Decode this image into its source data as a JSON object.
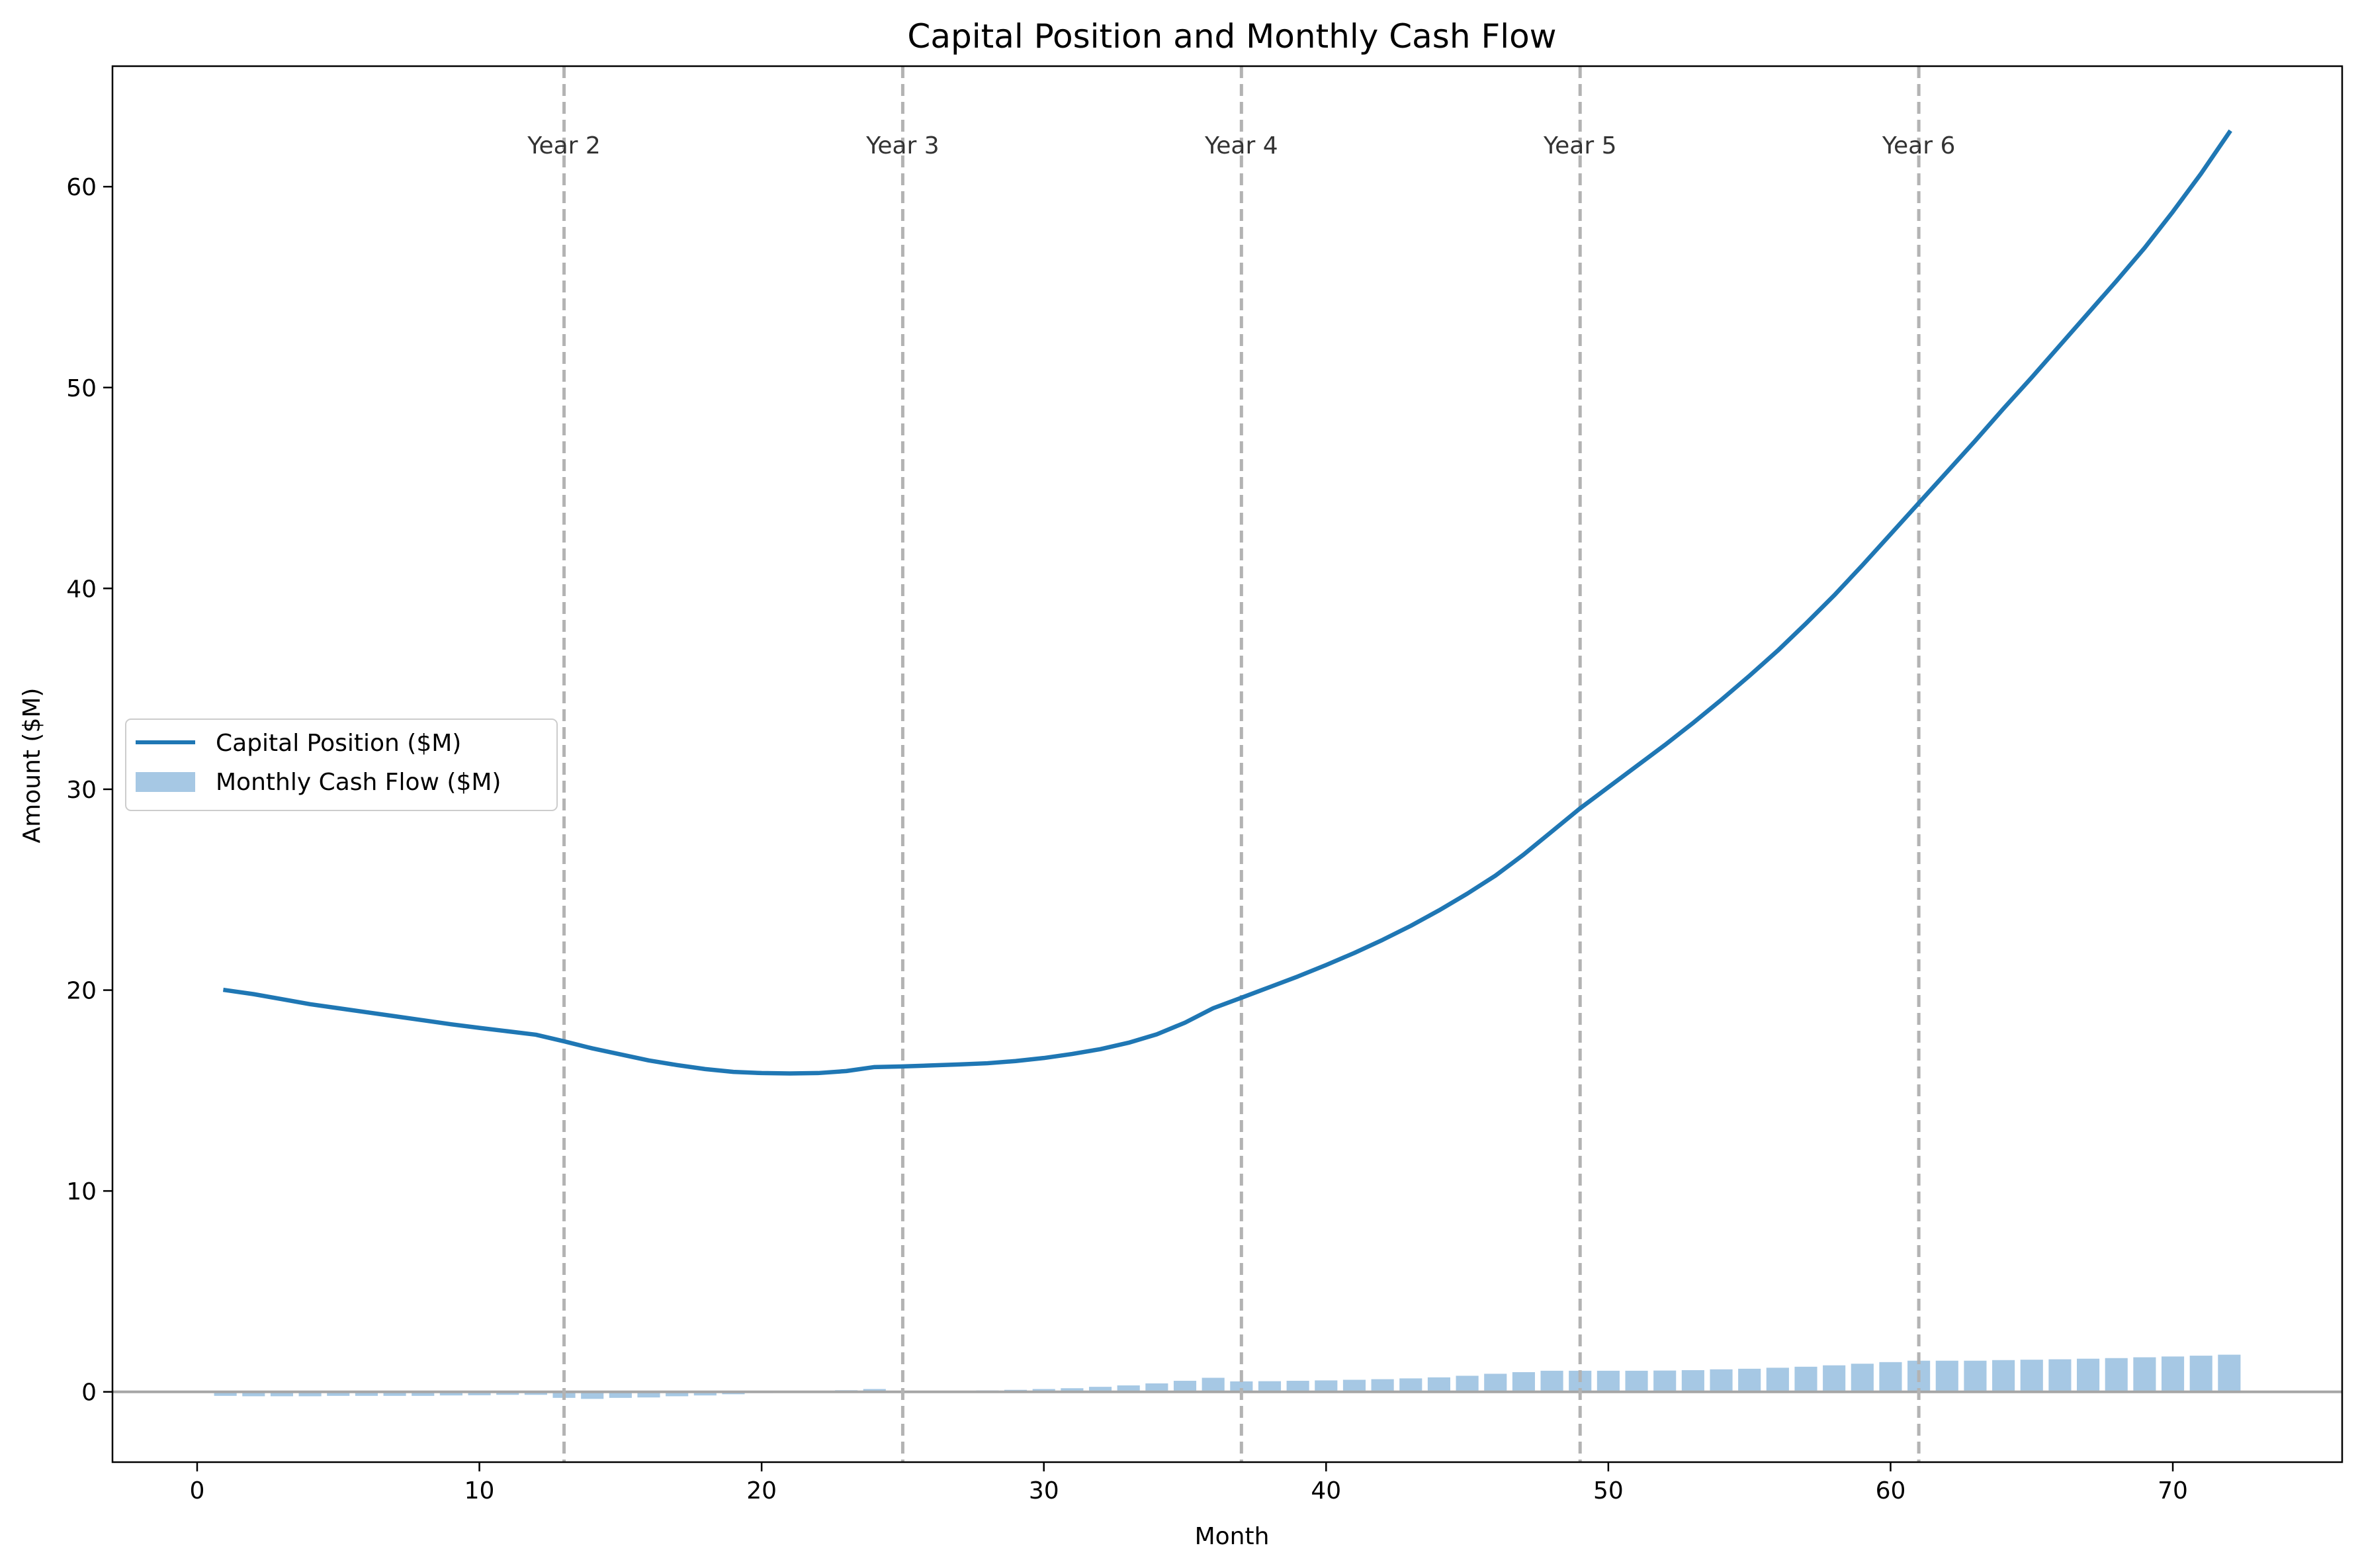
{
  "chart_data": {
    "type": "line",
    "title": "Capital Position and Monthly Cash Flow",
    "xlabel": "Month",
    "ylabel": "Amount ($M)",
    "xlim": [
      -3,
      76
    ],
    "ylim": [
      -3.5,
      66
    ],
    "xticks": [
      0,
      10,
      20,
      30,
      40,
      50,
      60,
      70
    ],
    "yticks": [
      0,
      10,
      20,
      30,
      40,
      50,
      60
    ],
    "grid": false,
    "legend": {
      "position": "center-left"
    },
    "colors": {
      "line": "#1f77b4",
      "bar": "#a6c8e4",
      "vline": "#b3b3b3",
      "zero": "#a6a6a6"
    },
    "annotations": [
      {
        "label": "Year 2",
        "x": 13
      },
      {
        "label": "Year 3",
        "x": 25
      },
      {
        "label": "Year 4",
        "x": 37
      },
      {
        "label": "Year 5",
        "x": 49
      },
      {
        "label": "Year 6",
        "x": 61
      }
    ],
    "series": [
      {
        "name": "Capital Position ($M)",
        "type": "line",
        "x": [
          1,
          2,
          3,
          4,
          5,
          6,
          7,
          8,
          9,
          10,
          11,
          12,
          13,
          14,
          15,
          16,
          17,
          18,
          19,
          20,
          21,
          22,
          23,
          24,
          25,
          26,
          27,
          28,
          29,
          30,
          31,
          32,
          33,
          34,
          35,
          36,
          37,
          38,
          39,
          40,
          41,
          42,
          43,
          44,
          45,
          46,
          47,
          48,
          49,
          50,
          51,
          52,
          53,
          54,
          55,
          56,
          57,
          58,
          59,
          60,
          61,
          62,
          63,
          64,
          65,
          66,
          67,
          68,
          69,
          70,
          71,
          72
        ],
        "values": [
          20.0,
          19.8,
          19.55,
          19.3,
          19.1,
          18.9,
          18.7,
          18.5,
          18.3,
          18.12,
          17.95,
          17.78,
          17.45,
          17.1,
          16.8,
          16.5,
          16.27,
          16.07,
          15.93,
          15.87,
          15.85,
          15.87,
          15.97,
          16.17,
          16.2,
          16.25,
          16.3,
          16.36,
          16.47,
          16.62,
          16.82,
          17.06,
          17.38,
          17.8,
          18.38,
          19.1,
          19.62,
          20.15,
          20.68,
          21.25,
          21.85,
          22.5,
          23.2,
          23.97,
          24.8,
          25.7,
          26.75,
          27.9,
          29.05,
          30.1,
          31.15,
          32.2,
          33.3,
          34.45,
          35.65,
          36.9,
          38.25,
          39.65,
          41.15,
          42.7,
          44.25,
          45.8,
          47.35,
          48.95,
          50.5,
          52.1,
          53.7,
          55.3,
          56.95,
          58.75,
          60.65,
          62.7
        ]
      },
      {
        "name": "Monthly Cash Flow ($M)",
        "type": "bar",
        "x": [
          1,
          2,
          3,
          4,
          5,
          6,
          7,
          8,
          9,
          10,
          11,
          12,
          13,
          14,
          15,
          16,
          17,
          18,
          19,
          20,
          21,
          22,
          23,
          24,
          25,
          26,
          27,
          28,
          29,
          30,
          31,
          32,
          33,
          34,
          35,
          36,
          37,
          38,
          39,
          40,
          41,
          42,
          43,
          44,
          45,
          46,
          47,
          48,
          49,
          50,
          51,
          52,
          53,
          54,
          55,
          56,
          57,
          58,
          59,
          60,
          61,
          62,
          63,
          64,
          65,
          66,
          67,
          68,
          69,
          70,
          71,
          72
        ],
        "values": [
          -0.2,
          -0.22,
          -0.22,
          -0.22,
          -0.2,
          -0.2,
          -0.2,
          -0.2,
          -0.18,
          -0.17,
          -0.15,
          -0.15,
          -0.3,
          -0.35,
          -0.3,
          -0.28,
          -0.22,
          -0.18,
          -0.12,
          -0.06,
          -0.02,
          0.02,
          0.08,
          0.14,
          0.04,
          0.05,
          0.05,
          0.07,
          0.1,
          0.14,
          0.18,
          0.25,
          0.32,
          0.42,
          0.55,
          0.7,
          0.52,
          0.53,
          0.55,
          0.57,
          0.6,
          0.63,
          0.67,
          0.72,
          0.8,
          0.9,
          0.98,
          1.05,
          1.05,
          1.05,
          1.05,
          1.06,
          1.08,
          1.12,
          1.15,
          1.2,
          1.25,
          1.32,
          1.4,
          1.48,
          1.55,
          1.55,
          1.55,
          1.58,
          1.6,
          1.62,
          1.65,
          1.68,
          1.72,
          1.76,
          1.8,
          1.85
        ]
      }
    ]
  }
}
